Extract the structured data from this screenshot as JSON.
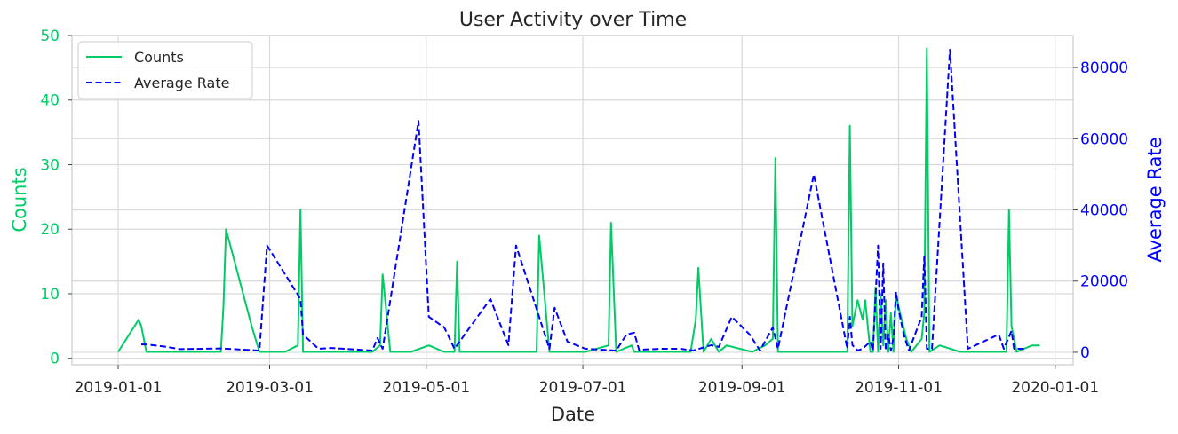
{
  "chart_data": {
    "type": "line",
    "title": "User Activity over Time",
    "xlabel": "Date",
    "ylabel": "Counts",
    "y2label": "Average Rate",
    "x_range": [
      "2018-12-14",
      "2020-01-08"
    ],
    "x_ticks": [
      "2019-01-01",
      "2019-03-01",
      "2019-05-01",
      "2019-07-01",
      "2019-09-01",
      "2019-11-01",
      "2020-01-01"
    ],
    "ylim": [
      -1,
      50
    ],
    "y_ticks": [
      0,
      10,
      20,
      30,
      40,
      50
    ],
    "y2lim": [
      -3500,
      89000
    ],
    "y2_ticks": [
      0,
      20000,
      40000,
      60000,
      80000
    ],
    "grid": true,
    "legend_position": "top-left",
    "series": [
      {
        "name": "Counts",
        "axis": "left",
        "color": "#00cc66",
        "style": "solid",
        "points": [
          [
            "2019-01-01",
            1
          ],
          [
            "2019-01-09",
            6
          ],
          [
            "2019-01-10",
            5
          ],
          [
            "2019-01-12",
            1
          ],
          [
            "2019-01-20",
            1
          ],
          [
            "2019-02-06",
            1
          ],
          [
            "2019-02-10",
            1
          ],
          [
            "2019-02-11",
            8
          ],
          [
            "2019-02-12",
            20
          ],
          [
            "2019-02-22",
            5
          ],
          [
            "2019-02-25",
            1
          ],
          [
            "2019-03-07",
            1
          ],
          [
            "2019-03-12",
            2
          ],
          [
            "2019-03-13",
            23
          ],
          [
            "2019-03-14",
            1
          ],
          [
            "2019-03-25",
            1
          ],
          [
            "2019-04-10",
            1
          ],
          [
            "2019-04-13",
            2
          ],
          [
            "2019-04-14",
            13
          ],
          [
            "2019-04-17",
            1
          ],
          [
            "2019-04-25",
            1
          ],
          [
            "2019-05-02",
            2
          ],
          [
            "2019-05-08",
            1
          ],
          [
            "2019-05-12",
            1
          ],
          [
            "2019-05-13",
            15
          ],
          [
            "2019-05-14",
            1
          ],
          [
            "2019-05-26",
            1
          ],
          [
            "2019-06-12",
            1
          ],
          [
            "2019-06-13",
            1
          ],
          [
            "2019-06-14",
            19
          ],
          [
            "2019-06-18",
            1
          ],
          [
            "2019-06-20",
            1
          ],
          [
            "2019-07-02",
            1
          ],
          [
            "2019-07-11",
            2
          ],
          [
            "2019-07-12",
            21
          ],
          [
            "2019-07-14",
            1
          ],
          [
            "2019-07-20",
            2
          ],
          [
            "2019-07-21",
            1
          ],
          [
            "2019-08-01",
            1
          ],
          [
            "2019-08-12",
            1
          ],
          [
            "2019-08-14",
            6
          ],
          [
            "2019-08-15",
            14
          ],
          [
            "2019-08-17",
            1
          ],
          [
            "2019-08-20",
            3
          ],
          [
            "2019-08-23",
            1
          ],
          [
            "2019-08-26",
            2
          ],
          [
            "2019-09-05",
            1
          ],
          [
            "2019-09-10",
            2
          ],
          [
            "2019-09-13",
            3
          ],
          [
            "2019-09-14",
            31
          ],
          [
            "2019-09-15",
            1
          ],
          [
            "2019-09-25",
            1
          ],
          [
            "2019-10-10",
            1
          ],
          [
            "2019-10-12",
            1
          ],
          [
            "2019-10-13",
            36
          ],
          [
            "2019-10-14",
            5
          ],
          [
            "2019-10-16",
            9
          ],
          [
            "2019-10-18",
            6
          ],
          [
            "2019-10-19",
            9
          ],
          [
            "2019-10-21",
            1
          ],
          [
            "2019-10-22",
            1
          ],
          [
            "2019-10-23",
            11
          ],
          [
            "2019-10-24",
            1
          ],
          [
            "2019-10-25",
            10
          ],
          [
            "2019-10-26",
            2
          ],
          [
            "2019-10-27",
            9
          ],
          [
            "2019-10-28",
            1
          ],
          [
            "2019-10-29",
            7
          ],
          [
            "2019-10-30",
            1
          ],
          [
            "2019-10-31",
            10
          ],
          [
            "2019-11-01",
            8
          ],
          [
            "2019-11-04",
            3
          ],
          [
            "2019-11-06",
            1
          ],
          [
            "2019-11-10",
            3
          ],
          [
            "2019-11-11",
            7
          ],
          [
            "2019-11-12",
            48
          ],
          [
            "2019-11-13",
            1
          ],
          [
            "2019-11-17",
            2
          ],
          [
            "2019-11-25",
            1
          ],
          [
            "2019-12-05",
            1
          ],
          [
            "2019-12-13",
            1
          ],
          [
            "2019-12-14",
            23
          ],
          [
            "2019-12-15",
            5
          ],
          [
            "2019-12-17",
            1
          ],
          [
            "2019-12-23",
            2
          ],
          [
            "2019-12-26",
            2
          ]
        ]
      },
      {
        "name": "Average Rate",
        "axis": "right",
        "color": "#0000ff",
        "style": "dashed",
        "points": [
          [
            "2019-01-10",
            2200
          ],
          [
            "2019-01-12",
            2200
          ],
          [
            "2019-01-20",
            1500
          ],
          [
            "2019-01-25",
            900
          ],
          [
            "2019-02-10",
            1100
          ],
          [
            "2019-02-25",
            500
          ],
          [
            "2019-02-28",
            30000
          ],
          [
            "2019-03-13",
            15000
          ],
          [
            "2019-03-14",
            5000
          ],
          [
            "2019-03-20",
            1000
          ],
          [
            "2019-03-25",
            1200
          ],
          [
            "2019-04-10",
            500
          ],
          [
            "2019-04-12",
            4000
          ],
          [
            "2019-04-14",
            1000
          ],
          [
            "2019-04-28",
            65000
          ],
          [
            "2019-05-02",
            10000
          ],
          [
            "2019-05-08",
            7000
          ],
          [
            "2019-05-12",
            1000
          ],
          [
            "2019-05-16",
            5000
          ],
          [
            "2019-05-26",
            15000
          ],
          [
            "2019-06-02",
            2000
          ],
          [
            "2019-06-05",
            30000
          ],
          [
            "2019-06-18",
            1000
          ],
          [
            "2019-06-20",
            12500
          ],
          [
            "2019-06-25",
            3000
          ],
          [
            "2019-07-02",
            1000
          ],
          [
            "2019-07-14",
            500
          ],
          [
            "2019-07-18",
            5000
          ],
          [
            "2019-07-21",
            5500
          ],
          [
            "2019-07-23",
            500
          ],
          [
            "2019-07-25",
            800
          ],
          [
            "2019-08-01",
            1000
          ],
          [
            "2019-08-08",
            1000
          ],
          [
            "2019-08-13",
            500
          ],
          [
            "2019-08-20",
            2000
          ],
          [
            "2019-08-23",
            1500
          ],
          [
            "2019-08-28",
            10000
          ],
          [
            "2019-09-04",
            5000
          ],
          [
            "2019-09-08",
            500
          ],
          [
            "2019-09-13",
            7000
          ],
          [
            "2019-09-15",
            1000
          ],
          [
            "2019-09-29",
            50000
          ],
          [
            "2019-10-12",
            1000
          ],
          [
            "2019-10-13",
            10000
          ],
          [
            "2019-10-14",
            2000
          ],
          [
            "2019-10-16",
            500
          ],
          [
            "2019-10-18",
            1000
          ],
          [
            "2019-10-21",
            3000
          ],
          [
            "2019-10-22",
            500
          ],
          [
            "2019-10-24",
            30000
          ],
          [
            "2019-10-25",
            1000
          ],
          [
            "2019-10-26",
            25000
          ],
          [
            "2019-10-27",
            500
          ],
          [
            "2019-10-28",
            5000
          ],
          [
            "2019-10-29",
            500
          ],
          [
            "2019-10-30",
            4000
          ],
          [
            "2019-10-31",
            17000
          ],
          [
            "2019-11-01",
            12000
          ],
          [
            "2019-11-03",
            5000
          ],
          [
            "2019-11-05",
            500
          ],
          [
            "2019-11-10",
            10000
          ],
          [
            "2019-11-11",
            27000
          ],
          [
            "2019-11-12",
            1000
          ],
          [
            "2019-11-14",
            1000
          ],
          [
            "2019-11-21",
            85000
          ],
          [
            "2019-11-28",
            1000
          ],
          [
            "2019-12-10",
            5000
          ],
          [
            "2019-12-12",
            1000
          ],
          [
            "2019-12-15",
            6000
          ],
          [
            "2019-12-16",
            1000
          ],
          [
            "2019-12-18",
            1000
          ],
          [
            "2019-12-21",
            1000
          ]
        ]
      }
    ]
  }
}
